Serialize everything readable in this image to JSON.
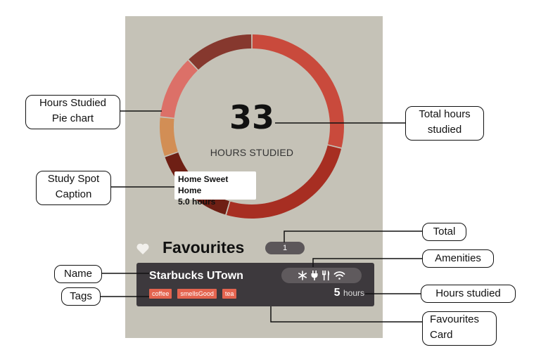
{
  "summary": {
    "total_hours": "33",
    "total_label": "HOURS STUDIED"
  },
  "chart_data": {
    "type": "pie",
    "categories": [
      "",
      "",
      "",
      "",
      "",
      ""
    ],
    "values": [
      9.5,
      8.5,
      5.0,
      2.3,
      3.7,
      4.0
    ],
    "colors": [
      "#c94a3c",
      "#a72e22",
      "#6e1f14",
      "#d28e55",
      "#dc7068",
      "#86382e"
    ]
  },
  "caption": {
    "name": "Home Sweet Home",
    "hours": "5.0 hours"
  },
  "favourites": {
    "title": "Favourites",
    "count": "1",
    "card": {
      "name": "Starbucks UTown",
      "tags": [
        "coffee",
        "smellsGood",
        "tea"
      ],
      "hours": "5",
      "hours_unit": "hours",
      "amenities": [
        "snowflake-icon",
        "plug-icon",
        "utensils-icon",
        "wifi-icon"
      ]
    }
  },
  "annotations": {
    "hours_pie": [
      "Hours Studied",
      "Pie chart"
    ],
    "total_hours": [
      "Total hours",
      "studied"
    ],
    "caption": [
      "Study Spot",
      "Caption"
    ],
    "total": "Total",
    "amenities": "Amenities",
    "name": "Name",
    "tags": "Tags",
    "hours_studied": "Hours studied",
    "favourites_card": [
      "Favourites",
      "Card"
    ]
  },
  "colors": {
    "panel": "#c5c2b7",
    "card": "#3d393d",
    "tag": "#e4644f",
    "badge": "#5c575a"
  }
}
